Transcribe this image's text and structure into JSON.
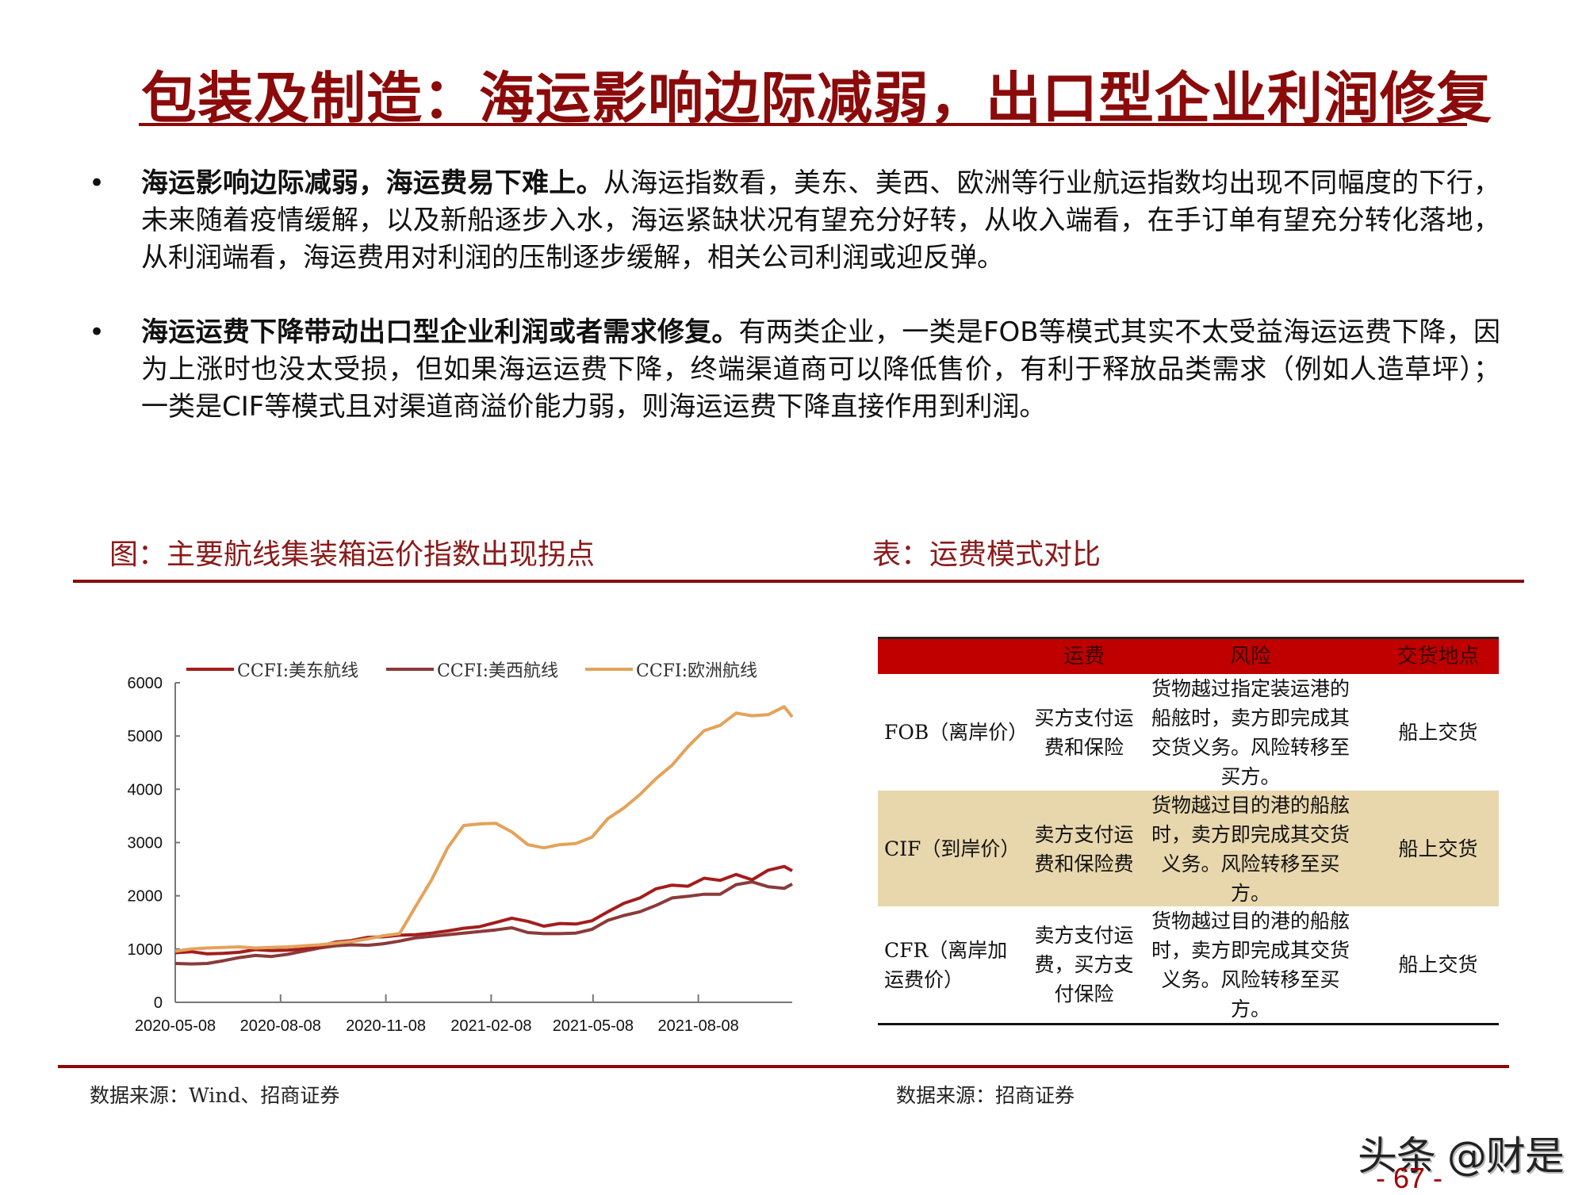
{
  "header": {
    "title": "包装及制造：海运影响边际减弱，出口型企业利润修复"
  },
  "bullets": [
    {
      "marker": "•",
      "bold": "海运影响边际减弱，海运费易下难上。",
      "text": "从海运指数看，美东、美西、欧洲等行业航运指数均出现不同幅度的下行，未来随着疫情缓解，以及新船逐步入水，海运紧缺状况有望充分好转，从收入端看，在手订单有望充分转化落地，从利润端看，海运费用对利润的压制逐步缓解，相关公司利润或迎反弹。"
    },
    {
      "marker": "•",
      "bold": "海运运费下降带动出口型企业利润或者需求修复。",
      "text": "有两类企业，一类是FOB等模式其实不太受益海运运费下降，因为上涨时也没太受损，但如果海运运费下降，终端渠道商可以降低售价，有利于释放品类需求（例如人造草坪）；一类是CIF等模式且对渠道商溢价能力弱，则海运运费下降直接作用到利润。"
    }
  ],
  "chart_section": {
    "title": "图：主要航线集装箱运价指数出现拐点",
    "source": "数据来源：Wind、招商证券"
  },
  "table_section": {
    "title": "表：运费模式对比",
    "source": "数据来源：招商证券",
    "headers": [
      "",
      "运费",
      "风险",
      "交货地点"
    ],
    "rows": [
      {
        "mode": "FOB（离岸价）",
        "freight": "买方支付运费和保险",
        "risk": "货物越过指定装运港的船舷时，卖方即完成其交货义务。风险转移至买方。",
        "delivery": "船上交货",
        "bg": "#ffffff"
      },
      {
        "mode": "CIF（到岸价）",
        "freight": "卖方支付运费和保险费",
        "risk": "货物越过目的港的船舷时，卖方即完成其交货义务。风险转移至买方。",
        "delivery": "船上交货",
        "bg": "#e8d7ad"
      },
      {
        "mode": "CFR（离岸加运费价）",
        "freight": "卖方支付运费，买方支付保险",
        "risk": "货物越过目的港的船舷时，卖方即完成其交货义务。风险转移至买方。",
        "delivery": "船上交货",
        "bg": "#ffffff"
      }
    ]
  },
  "colors": {
    "brand": "#8b0a0a",
    "table_header": "#c00000",
    "table_highlight": "#e8d7ad",
    "us_east": "#a51c1c",
    "us_west": "#8b3a3a",
    "europe": "#e3a35a"
  },
  "chart_data": {
    "type": "line",
    "title": "主要航线集装箱运价指数出现拐点",
    "xlabel": "",
    "ylabel": "",
    "ylim": [
      0,
      6000
    ],
    "yticks": [
      0,
      1000,
      2000,
      3000,
      4000,
      5000,
      6000
    ],
    "xtick_labels": [
      "2020-05-08",
      "2020-08-08",
      "2020-11-08",
      "2021-02-08",
      "2021-05-08",
      "2021-08-08"
    ],
    "legend_position": "top",
    "grid": false,
    "x": [
      "2020-05-08",
      "2020-05-22",
      "2020-06-05",
      "2020-06-19",
      "2020-07-03",
      "2020-07-17",
      "2020-07-31",
      "2020-08-14",
      "2020-08-28",
      "2020-09-11",
      "2020-09-25",
      "2020-10-09",
      "2020-10-23",
      "2020-11-06",
      "2020-11-20",
      "2020-12-04",
      "2020-12-18",
      "2021-01-01",
      "2021-01-15",
      "2021-01-29",
      "2021-02-12",
      "2021-02-26",
      "2021-03-12",
      "2021-03-26",
      "2021-04-09",
      "2021-04-23",
      "2021-05-07",
      "2021-05-21",
      "2021-06-04",
      "2021-06-18",
      "2021-07-02",
      "2021-07-16",
      "2021-07-30",
      "2021-08-13",
      "2021-08-27",
      "2021-09-10",
      "2021-09-24",
      "2021-10-08",
      "2021-10-22",
      "2021-10-29"
    ],
    "series": [
      {
        "name": "CCFI:美东航线",
        "color": "#a51c1c",
        "values": [
          930,
          950,
          910,
          920,
          940,
          990,
          970,
          980,
          1000,
          1050,
          1130,
          1160,
          1220,
          1230,
          1260,
          1270,
          1300,
          1340,
          1390,
          1420,
          1500,
          1580,
          1520,
          1430,
          1480,
          1470,
          1530,
          1700,
          1860,
          1960,
          2130,
          2200,
          2180,
          2330,
          2290,
          2400,
          2300,
          2480,
          2550,
          2470
        ]
      },
      {
        "name": "CCFI:美西航线",
        "color": "#8b3a3a",
        "values": [
          730,
          720,
          730,
          780,
          840,
          880,
          860,
          900,
          960,
          1020,
          1060,
          1080,
          1070,
          1100,
          1150,
          1210,
          1240,
          1270,
          1300,
          1330,
          1360,
          1400,
          1310,
          1290,
          1290,
          1300,
          1370,
          1540,
          1630,
          1700,
          1820,
          1960,
          1990,
          2030,
          2030,
          2210,
          2260,
          2170,
          2140,
          2220
        ]
      },
      {
        "name": "CCFI:欧洲航线",
        "color": "#e3a35a",
        "values": [
          960,
          1000,
          1020,
          1030,
          1040,
          1020,
          1030,
          1040,
          1060,
          1080,
          1110,
          1140,
          1190,
          1250,
          1290,
          1800,
          2300,
          2900,
          3320,
          3350,
          3360,
          3200,
          2960,
          2900,
          2960,
          2980,
          3100,
          3450,
          3650,
          3900,
          4200,
          4450,
          4800,
          5100,
          5200,
          5430,
          5380,
          5400,
          5550,
          5360
        ]
      }
    ]
  },
  "watermark": {
    "text": "头条 @财是"
  },
  "footer": {
    "page_number": "- 67 -"
  }
}
